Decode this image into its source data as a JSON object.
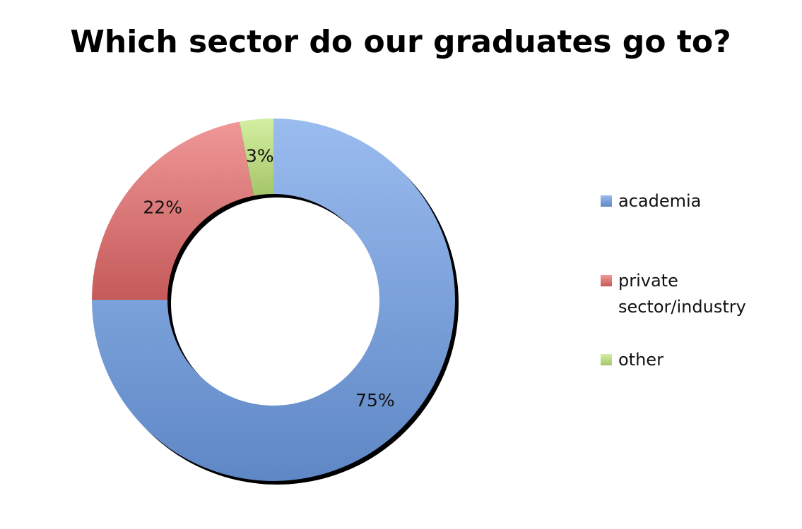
{
  "chart_data": {
    "type": "donut",
    "title": "Which sector do our graduates go to?",
    "categories": [
      "academia",
      "private sector/industry",
      "other"
    ],
    "values": [
      75,
      22,
      3
    ],
    "value_labels": [
      "75%",
      "22%",
      "3%"
    ],
    "colors": [
      "#6f9fe8",
      "#e86a6a",
      "#c2e87a"
    ],
    "legend": "right"
  }
}
